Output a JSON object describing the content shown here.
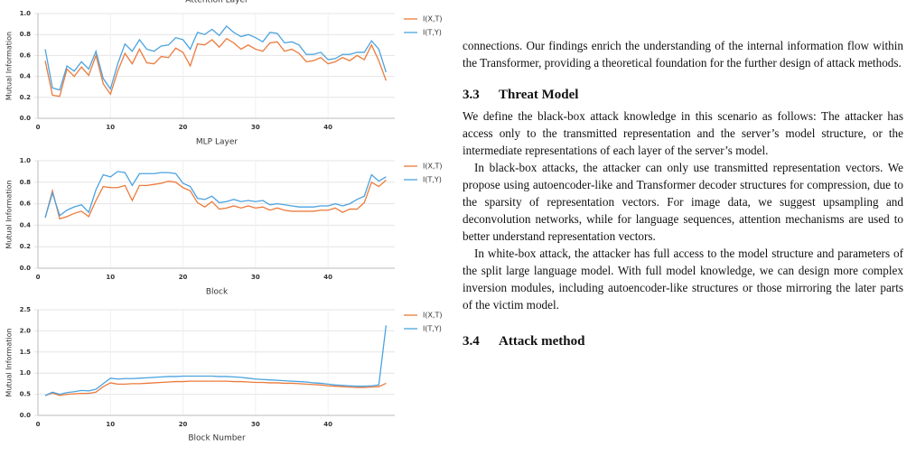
{
  "chart_data": [
    {
      "type": "line",
      "title": "Attention Layer",
      "y_label": "Mutual Information",
      "x": [
        1,
        2,
        3,
        4,
        5,
        6,
        7,
        8,
        9,
        10,
        11,
        12,
        13,
        14,
        15,
        16,
        17,
        18,
        19,
        20,
        21,
        22,
        23,
        24,
        25,
        26,
        27,
        28,
        29,
        30,
        31,
        32,
        33,
        34,
        35,
        36,
        37,
        38,
        39,
        40,
        41,
        42,
        43,
        44,
        45,
        46,
        47,
        48
      ],
      "series": [
        {
          "name": "I(X,T)",
          "color": "#ec7a3c",
          "values": [
            0.55,
            0.22,
            0.21,
            0.47,
            0.4,
            0.49,
            0.41,
            0.6,
            0.33,
            0.23,
            0.45,
            0.62,
            0.52,
            0.66,
            0.53,
            0.52,
            0.59,
            0.58,
            0.67,
            0.63,
            0.5,
            0.71,
            0.7,
            0.75,
            0.68,
            0.76,
            0.72,
            0.66,
            0.7,
            0.66,
            0.64,
            0.72,
            0.73,
            0.64,
            0.66,
            0.62,
            0.54,
            0.55,
            0.58,
            0.52,
            0.54,
            0.58,
            0.55,
            0.6,
            0.56,
            0.7,
            0.55,
            0.36
          ]
        },
        {
          "name": "I(T,Y)",
          "color": "#4ba3e0",
          "values": [
            0.66,
            0.29,
            0.27,
            0.5,
            0.45,
            0.54,
            0.47,
            0.64,
            0.38,
            0.28,
            0.52,
            0.71,
            0.64,
            0.75,
            0.66,
            0.64,
            0.69,
            0.7,
            0.77,
            0.75,
            0.66,
            0.82,
            0.8,
            0.85,
            0.79,
            0.88,
            0.82,
            0.78,
            0.8,
            0.77,
            0.73,
            0.82,
            0.81,
            0.72,
            0.73,
            0.7,
            0.61,
            0.61,
            0.63,
            0.56,
            0.57,
            0.61,
            0.61,
            0.63,
            0.63,
            0.74,
            0.66,
            0.44
          ]
        }
      ],
      "xlim": [
        0,
        49.2
      ],
      "xticks": [
        0,
        10,
        20,
        30,
        40
      ],
      "ylim": [
        0,
        1
      ],
      "yticks": [
        {
          "value": 0,
          "label": "0.0"
        },
        0.2,
        0.4,
        0.6,
        0.8,
        {
          "value": 1,
          "label": "1.0"
        }
      ],
      "grid": true
    },
    {
      "type": "line",
      "title": "MLP Layer",
      "y_label": "Mutual Information",
      "x": [
        1,
        2,
        3,
        4,
        5,
        6,
        7,
        8,
        9,
        10,
        11,
        12,
        13,
        14,
        15,
        16,
        17,
        18,
        19,
        20,
        21,
        22,
        23,
        24,
        25,
        26,
        27,
        28,
        29,
        30,
        31,
        32,
        33,
        34,
        35,
        36,
        37,
        38,
        39,
        40,
        41,
        42,
        43,
        44,
        45,
        46,
        47,
        48
      ],
      "series": [
        {
          "name": "I(X,T)",
          "color": "#ec7a3c",
          "values": [
            0.47,
            0.72,
            0.46,
            0.48,
            0.51,
            0.53,
            0.48,
            0.63,
            0.76,
            0.75,
            0.75,
            0.77,
            0.63,
            0.77,
            0.77,
            0.78,
            0.79,
            0.81,
            0.8,
            0.75,
            0.72,
            0.61,
            0.57,
            0.62,
            0.55,
            0.56,
            0.58,
            0.56,
            0.58,
            0.56,
            0.57,
            0.54,
            0.56,
            0.54,
            0.53,
            0.53,
            0.53,
            0.53,
            0.54,
            0.54,
            0.56,
            0.52,
            0.55,
            0.55,
            0.61,
            0.8,
            0.76,
            0.82
          ]
        },
        {
          "name": "I(T,Y)",
          "color": "#4ba3e0",
          "values": [
            0.47,
            0.7,
            0.49,
            0.54,
            0.57,
            0.59,
            0.52,
            0.73,
            0.87,
            0.85,
            0.9,
            0.89,
            0.77,
            0.88,
            0.88,
            0.88,
            0.89,
            0.89,
            0.88,
            0.79,
            0.76,
            0.65,
            0.64,
            0.67,
            0.61,
            0.62,
            0.64,
            0.62,
            0.63,
            0.62,
            0.63,
            0.59,
            0.6,
            0.59,
            0.58,
            0.57,
            0.57,
            0.57,
            0.58,
            0.58,
            0.6,
            0.58,
            0.6,
            0.64,
            0.67,
            0.87,
            0.81,
            0.85
          ]
        }
      ],
      "xlim": [
        0,
        49.2
      ],
      "xticks": [
        0,
        10,
        20,
        30,
        40
      ],
      "ylim": [
        0,
        1
      ],
      "yticks": [
        {
          "value": 0,
          "label": "0.0"
        },
        0.2,
        0.4,
        0.6,
        0.8,
        {
          "value": 1,
          "label": "1.0"
        }
      ],
      "grid": true
    },
    {
      "type": "line",
      "title": "Block",
      "y_label": "Mutual Information",
      "x_label": "Block Number",
      "x": [
        1,
        2,
        3,
        4,
        5,
        6,
        7,
        8,
        9,
        10,
        11,
        12,
        13,
        14,
        15,
        16,
        17,
        18,
        19,
        20,
        21,
        22,
        23,
        24,
        25,
        26,
        27,
        28,
        29,
        30,
        31,
        32,
        33,
        34,
        35,
        36,
        37,
        38,
        39,
        40,
        41,
        42,
        43,
        44,
        45,
        46,
        47,
        48
      ],
      "series": [
        {
          "name": "I(X,T)",
          "color": "#ec7a3c",
          "values": [
            0.47,
            0.53,
            0.47,
            0.5,
            0.51,
            0.52,
            0.52,
            0.55,
            0.68,
            0.77,
            0.74,
            0.74,
            0.75,
            0.75,
            0.76,
            0.77,
            0.78,
            0.79,
            0.8,
            0.8,
            0.81,
            0.81,
            0.81,
            0.81,
            0.81,
            0.81,
            0.8,
            0.8,
            0.79,
            0.78,
            0.78,
            0.77,
            0.77,
            0.76,
            0.76,
            0.75,
            0.74,
            0.73,
            0.72,
            0.7,
            0.69,
            0.68,
            0.67,
            0.66,
            0.66,
            0.67,
            0.68,
            0.76
          ]
        },
        {
          "name": "I(T,Y)",
          "color": "#4ba3e0",
          "values": [
            0.47,
            0.55,
            0.5,
            0.54,
            0.56,
            0.59,
            0.58,
            0.62,
            0.75,
            0.88,
            0.86,
            0.87,
            0.87,
            0.88,
            0.89,
            0.9,
            0.91,
            0.92,
            0.92,
            0.93,
            0.93,
            0.93,
            0.93,
            0.93,
            0.92,
            0.92,
            0.91,
            0.9,
            0.88,
            0.86,
            0.85,
            0.84,
            0.83,
            0.82,
            0.81,
            0.8,
            0.79,
            0.77,
            0.76,
            0.74,
            0.72,
            0.71,
            0.7,
            0.69,
            0.69,
            0.7,
            0.72,
            2.13
          ]
        }
      ],
      "xlim": [
        0,
        49.2
      ],
      "xticks": [
        0,
        10,
        20,
        30,
        40
      ],
      "ylim": [
        0,
        2.5
      ],
      "yticks": [
        {
          "value": 0,
          "label": "0.0"
        },
        0.5,
        {
          "value": 1,
          "label": "1.0"
        },
        1.5,
        {
          "value": 2,
          "label": "2.0"
        },
        2.5
      ],
      "grid": true
    }
  ],
  "body": {
    "p0": "connections. Our findings enrich the understanding of the internal information flow within the Transformer, providing a theoretical foundation for the further design of attack methods.",
    "h1": {
      "number": "3.3",
      "title": "Threat Model"
    },
    "p1": "We define the black-box attack knowledge in this scenario as follows: The attacker has access only to the transmitted representation and the server’s model structure, or the intermediate representations of each layer of the server’s model.",
    "p2": "In black-box attacks, the attacker can only use transmitted representation vectors. We propose using autoencoder-like and Transformer decoder structures for compression, due to the sparsity of representation vectors. For image data, we suggest upsampling and deconvolution networks, while for language sequences, attention mechanisms are used to better understand representation vectors.",
    "p3": "In white-box attack, the attacker has full access to the model structure and parameters of the split large language model. With full model knowledge, we can design more complex inversion modules, including autoencoder-like structures or those mirroring the later parts of the victim model.",
    "h2": {
      "number": "3.4",
      "title": "Attack method"
    }
  }
}
